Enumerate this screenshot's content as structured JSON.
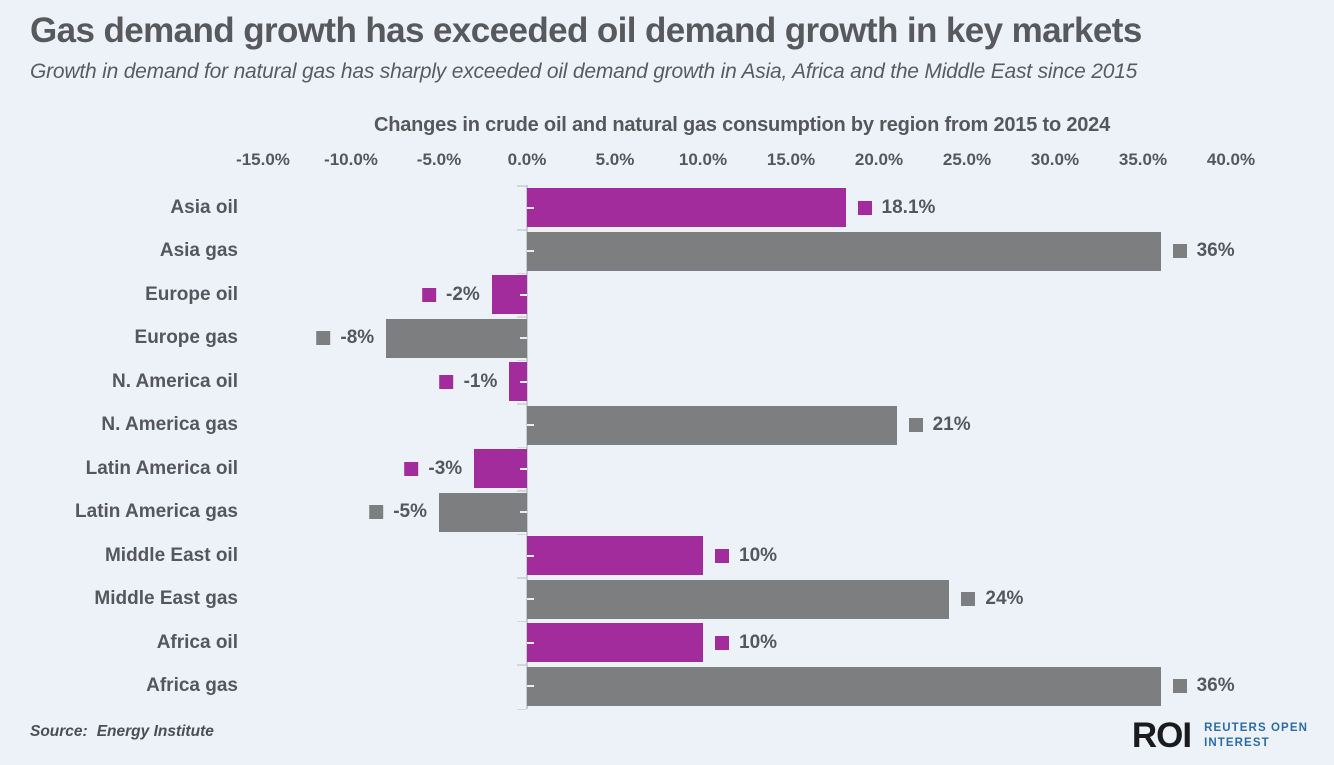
{
  "page": {
    "title": "Gas demand growth has exceeded oil demand growth in key markets",
    "subtitle": "Growth in demand for natural gas has sharply exceeded oil demand growth in Asia, Africa and the Middle East since 2015",
    "background_color": "#edf2f8",
    "text_color": "#58595d"
  },
  "footer": {
    "source_label": "Source:",
    "source_value": "Energy Institute",
    "logo_roi": "ROI",
    "logo_text_line1": "REUTERS OPEN",
    "logo_text_line2": "INTEREST",
    "logo_roi_color": "#1b1b1d",
    "logo_text_color": "#2b6ca4"
  },
  "chart_data": {
    "type": "bar",
    "orientation": "horizontal",
    "title": "Changes in crude oil and natural gas consumption by region from 2015 to 2024",
    "xlabel": "",
    "ylabel": "",
    "unit": "%",
    "xlim": [
      -15,
      40
    ],
    "x_tick_step": 5,
    "x_tick_labels": [
      "-15.0%",
      "-10.0%",
      "-5.0%",
      "0.0%",
      "5.0%",
      "10.0%",
      "15.0%",
      "20.0%",
      "25.0%",
      "30.0%",
      "35.0%",
      "40.0%"
    ],
    "grid": false,
    "legend_position": "none",
    "series_colors": {
      "oil": "#a22c9b",
      "gas": "#7d7e80"
    },
    "rows": [
      {
        "label": "Asia oil",
        "series": "oil",
        "value": 18.1,
        "value_label": "18.1%"
      },
      {
        "label": "Asia gas",
        "series": "gas",
        "value": 36,
        "value_label": "36%"
      },
      {
        "label": "Europe oil",
        "series": "oil",
        "value": -2,
        "value_label": "-2%"
      },
      {
        "label": "Europe gas",
        "series": "gas",
        "value": -8,
        "value_label": "-8%"
      },
      {
        "label": "N. America oil",
        "series": "oil",
        "value": -1,
        "value_label": "-1%"
      },
      {
        "label": "N. America gas",
        "series": "gas",
        "value": 21,
        "value_label": "21%"
      },
      {
        "label": "Latin America oil",
        "series": "oil",
        "value": -3,
        "value_label": "-3%"
      },
      {
        "label": "Latin America gas",
        "series": "gas",
        "value": -5,
        "value_label": "-5%"
      },
      {
        "label": "Middle East oil",
        "series": "oil",
        "value": 10,
        "value_label": "10%"
      },
      {
        "label": "Middle East gas",
        "series": "gas",
        "value": 24,
        "value_label": "24%"
      },
      {
        "label": "Africa oil",
        "series": "oil",
        "value": 10,
        "value_label": "10%"
      },
      {
        "label": "Africa gas",
        "series": "gas",
        "value": 36,
        "value_label": "36%"
      }
    ]
  }
}
